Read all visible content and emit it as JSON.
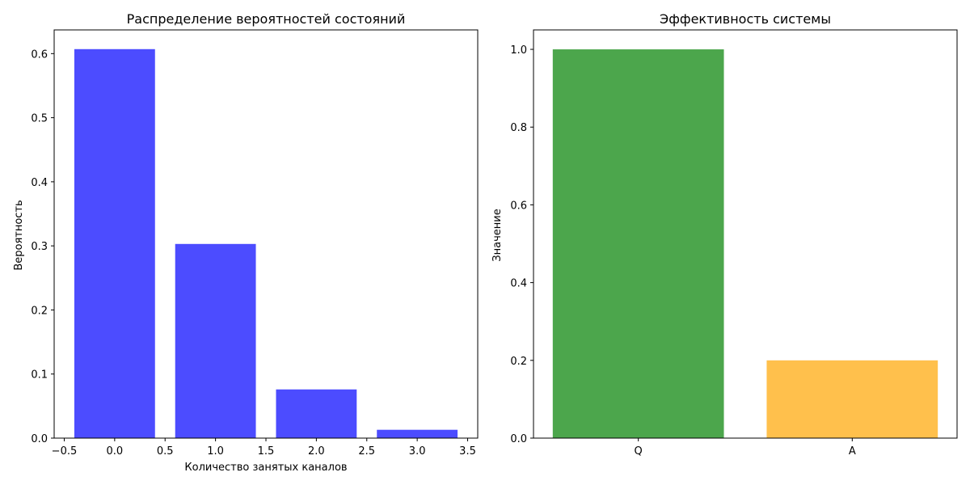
{
  "chart_data": [
    {
      "type": "bar",
      "title": "Распределение вероятностей состояний",
      "xlabel": "Количество занятых каналов",
      "ylabel": "Вероятность",
      "x": [
        0,
        1,
        2,
        3
      ],
      "values": [
        0.607,
        0.303,
        0.076,
        0.013
      ],
      "bar_width": 0.8,
      "color": "#0000ff",
      "opacity": 0.7,
      "xlim": [
        -0.6,
        3.6
      ],
      "ylim": [
        0,
        0.637
      ],
      "xticks": [
        -0.5,
        0.0,
        0.5,
        1.0,
        1.5,
        2.0,
        2.5,
        3.0,
        3.5
      ],
      "xtick_labels": [
        "−0.5",
        "0.0",
        "0.5",
        "1.0",
        "1.5",
        "2.0",
        "2.5",
        "3.0",
        "3.5"
      ],
      "yticks": [
        0.0,
        0.1,
        0.2,
        0.3,
        0.4,
        0.5,
        0.6
      ],
      "ytick_labels": [
        "0.0",
        "0.1",
        "0.2",
        "0.3",
        "0.4",
        "0.5",
        "0.6"
      ],
      "grid": false,
      "legend": "none"
    },
    {
      "type": "bar",
      "title": "Эффективность системы",
      "xlabel": "",
      "ylabel": "Значение",
      "categories": [
        "Q",
        "A"
      ],
      "values": [
        1.0,
        0.2
      ],
      "colors": [
        "#008000",
        "#ffa500"
      ],
      "opacity": 0.7,
      "ylim": [
        0,
        1.05
      ],
      "yticks": [
        0.0,
        0.2,
        0.4,
        0.6,
        0.8,
        1.0
      ],
      "ytick_labels": [
        "0.0",
        "0.2",
        "0.4",
        "0.6",
        "0.8",
        "1.0"
      ],
      "grid": false,
      "legend": "none"
    }
  ]
}
